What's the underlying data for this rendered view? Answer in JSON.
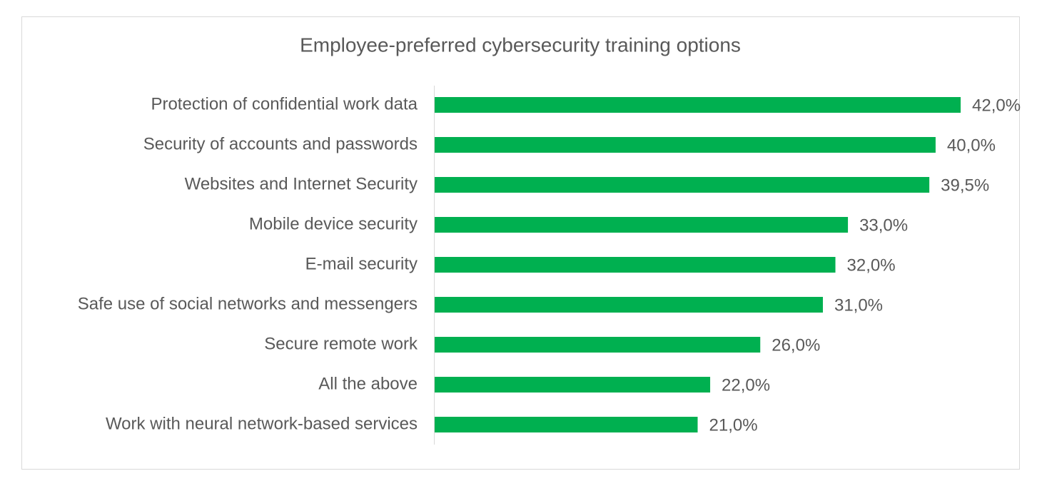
{
  "chart_data": {
    "type": "hbar",
    "title": "Employee-preferred cybersecurity training options",
    "categories": [
      "Protection of confidential work data",
      "Security of accounts and passwords",
      "Websites and Internet Security",
      "Mobile device security",
      "E-mail security",
      "Safe use of social networks and messengers",
      "Secure remote work",
      "All the above",
      "Work with neural network-based services"
    ],
    "values": [
      42,
      40,
      39.5,
      33,
      32,
      31,
      26,
      22,
      21
    ],
    "value_labels": [
      "42,0%",
      "40,0%",
      "39,5%",
      "33,0%",
      "32,0%",
      "31,0%",
      "26,0%",
      "22,0%",
      "21,0%"
    ],
    "color": "#00b050"
  }
}
